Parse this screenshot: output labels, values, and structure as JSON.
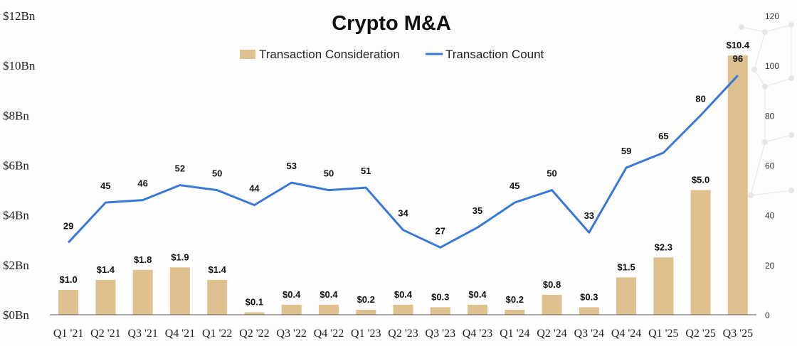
{
  "colors": {
    "bar": "#dfc08f",
    "line": "#3a78d8",
    "axis": "#555555",
    "background": "#fdfdfd",
    "decor": "#e6e6e6"
  },
  "chart_data": {
    "type": "bar",
    "title": "Crypto M&A",
    "legend_position": "top-center",
    "grid": false,
    "categories": [
      "Q1 '21",
      "Q2 '21",
      "Q3 '21",
      "Q4 '21",
      "Q1 '22",
      "Q2 '22",
      "Q3 '22",
      "Q4 '22",
      "Q1 '23",
      "Q2 '23",
      "Q3 '23",
      "Q4 '23",
      "Q1 '24",
      "Q2 '24",
      "Q3 '24",
      "Q4 '24",
      "Q1 '25",
      "Q2 '25",
      "Q3 '25"
    ],
    "series": [
      {
        "name": "Transaction Consideration",
        "type": "bar",
        "axis": "left",
        "values": [
          1.0,
          1.4,
          1.8,
          1.9,
          1.4,
          0.1,
          0.4,
          0.4,
          0.2,
          0.4,
          0.3,
          0.4,
          0.2,
          0.8,
          0.3,
          1.5,
          2.3,
          5.0,
          10.4
        ],
        "labels": [
          "$1.0",
          "$1.4",
          "$1.8",
          "$1.9",
          "$1.4",
          "$0.1",
          "$0.4",
          "$0.4",
          "$0.2",
          "$0.4",
          "$0.3",
          "$0.4",
          "$0.2",
          "$0.8",
          "$0.3",
          "$1.5",
          "$2.3",
          "$5.0",
          "$10.4"
        ]
      },
      {
        "name": "Transaction Count",
        "type": "line",
        "axis": "right",
        "values": [
          29,
          45,
          46,
          52,
          50,
          44,
          53,
          50,
          51,
          34,
          27,
          35,
          45,
          50,
          33,
          59,
          65,
          80,
          96
        ],
        "labels": [
          "29",
          "45",
          "46",
          "52",
          "50",
          "44",
          "53",
          "50",
          "51",
          "34",
          "27",
          "35",
          "45",
          "50",
          "33",
          "59",
          "65",
          "80",
          "96"
        ]
      }
    ],
    "y_left": {
      "ylim": [
        0,
        12
      ],
      "ticks": [
        0,
        2,
        4,
        6,
        8,
        10,
        12
      ],
      "tick_labels": [
        "$0Bn",
        "$2Bn",
        "$4Bn",
        "$6Bn",
        "$8Bn",
        "$10Bn",
        "$12Bn"
      ]
    },
    "y_right": {
      "ylim": [
        0,
        120
      ],
      "ticks": [
        0,
        20,
        40,
        60,
        80,
        100,
        120
      ],
      "tick_labels": [
        "0",
        "20",
        "40",
        "60",
        "80",
        "100",
        "120"
      ]
    }
  }
}
